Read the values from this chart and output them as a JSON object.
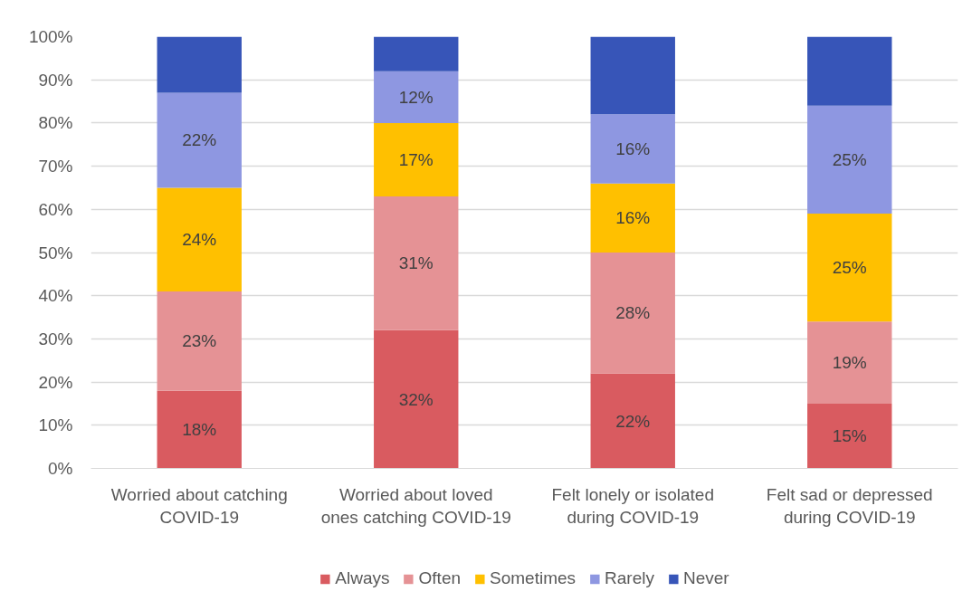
{
  "chart_data": {
    "type": "bar",
    "stacked": true,
    "categories": [
      "Worried about catching COVID-19",
      "Worried about loved ones catching COVID-19",
      "Felt lonely or isolated during COVID-19",
      "Felt sad or depressed during COVID-19"
    ],
    "series": [
      {
        "name": "Always",
        "color": "#d95b60",
        "values": [
          18,
          32,
          22,
          15
        ],
        "value_labels": [
          "18%",
          "32%",
          "22%",
          "15%"
        ]
      },
      {
        "name": "Often",
        "color": "#e59295",
        "values": [
          23,
          31,
          28,
          19
        ],
        "value_labels": [
          "23%",
          "31%",
          "28%",
          "19%"
        ]
      },
      {
        "name": "Sometimes",
        "color": "#ffc000",
        "values": [
          24,
          17,
          16,
          25
        ],
        "value_labels": [
          "24%",
          "17%",
          "16%",
          "25%"
        ]
      },
      {
        "name": "Rarely",
        "color": "#8e97e1",
        "values": [
          22,
          12,
          16,
          25
        ],
        "value_labels": [
          "22%",
          "12%",
          "16%",
          "25%"
        ]
      },
      {
        "name": "Never",
        "color": "#3755b8",
        "values": [
          13,
          8,
          18,
          16
        ]
      }
    ],
    "ylim": [
      0,
      100
    ],
    "yticks": [
      {
        "value": 0,
        "label": "0%"
      },
      {
        "value": 10,
        "label": "10%"
      },
      {
        "value": 20,
        "label": "20%"
      },
      {
        "value": 30,
        "label": "30%"
      },
      {
        "value": 40,
        "label": "40%"
      },
      {
        "value": 50,
        "label": "50%"
      },
      {
        "value": 60,
        "label": "60%"
      },
      {
        "value": 70,
        "label": "70%"
      },
      {
        "value": 80,
        "label": "80%"
      },
      {
        "value": 90,
        "label": "90%"
      },
      {
        "value": 100,
        "label": "100%"
      }
    ],
    "grid": "y",
    "legend": "bottom"
  }
}
